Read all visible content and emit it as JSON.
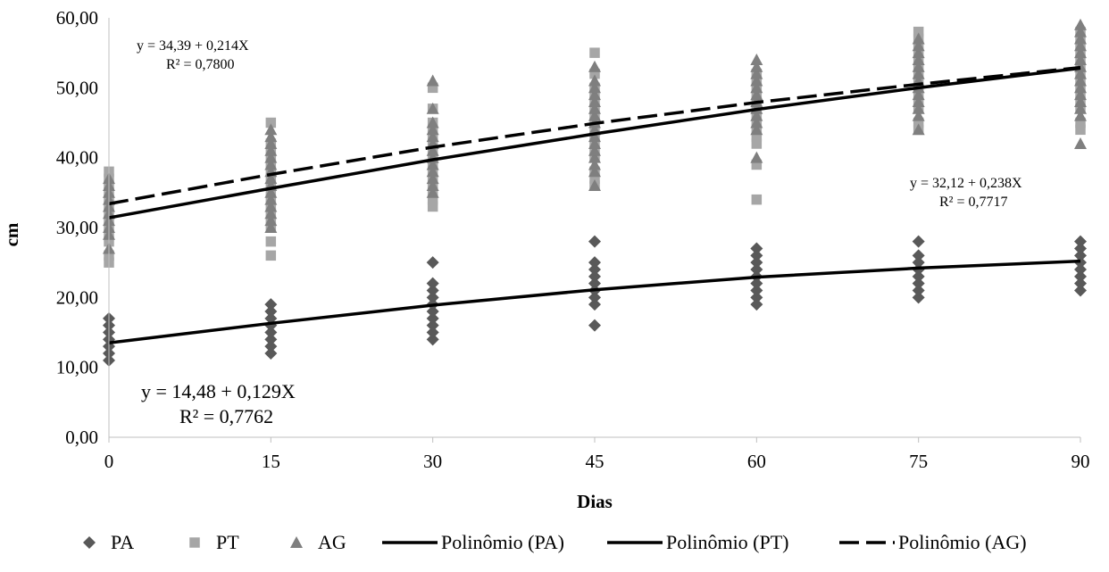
{
  "chart_data": {
    "type": "scatter",
    "title": "",
    "xlabel": "Dias",
    "ylabel": "cm",
    "xlim": [
      0,
      90
    ],
    "ylim": [
      0,
      60
    ],
    "x_ticks": [
      0,
      15,
      30,
      45,
      60,
      75,
      90
    ],
    "x_tick_labels": [
      "0",
      "15",
      "30",
      "45",
      "60",
      "75",
      "90"
    ],
    "y_ticks": [
      0,
      10,
      20,
      30,
      40,
      50,
      60
    ],
    "y_tick_labels": [
      "0,00",
      "10,00",
      "20,00",
      "30,00",
      "40,00",
      "50,00",
      "60,00"
    ],
    "grid": false,
    "legend_position": "bottom",
    "series": [
      {
        "name": "PA",
        "marker": "diamond",
        "color": "#595959",
        "points": [
          {
            "x": 0,
            "y": [
              11,
              12,
              13,
              14,
              15,
              16,
              17
            ]
          },
          {
            "x": 15,
            "y": [
              12,
              13,
              14,
              15,
              16,
              17,
              18,
              19
            ]
          },
          {
            "x": 30,
            "y": [
              14,
              15,
              16,
              17,
              18,
              19,
              20,
              21,
              22,
              25
            ]
          },
          {
            "x": 45,
            "y": [
              16,
              19,
              20,
              21,
              22,
              23,
              24,
              25,
              28
            ]
          },
          {
            "x": 60,
            "y": [
              19,
              20,
              21,
              22,
              23,
              24,
              25,
              26,
              27
            ]
          },
          {
            "x": 75,
            "y": [
              20,
              21,
              22,
              23,
              24,
              25,
              26,
              28
            ]
          },
          {
            "x": 90,
            "y": [
              21,
              22,
              23,
              24,
              25,
              26,
              27,
              28
            ]
          }
        ]
      },
      {
        "name": "PT",
        "marker": "square",
        "color": "#a6a6a6",
        "points": [
          {
            "x": 0,
            "y": [
              25,
              26,
              28,
              29,
              30,
              31,
              32,
              33,
              34,
              35,
              36,
              37,
              38
            ]
          },
          {
            "x": 15,
            "y": [
              26,
              28,
              30,
              31,
              32,
              33,
              34,
              35,
              36,
              37,
              38,
              39,
              40,
              41,
              42,
              45
            ]
          },
          {
            "x": 30,
            "y": [
              33,
              34,
              35,
              36,
              37,
              38,
              39,
              40,
              41,
              42,
              43,
              44,
              45,
              47,
              50
            ]
          },
          {
            "x": 45,
            "y": [
              36,
              37,
              38,
              40,
              41,
              42,
              43,
              44,
              45,
              46,
              47,
              48,
              49,
              50,
              52,
              55
            ]
          },
          {
            "x": 60,
            "y": [
              34,
              39,
              42,
              43,
              44,
              45,
              46,
              47,
              48,
              49,
              50,
              51,
              52
            ]
          },
          {
            "x": 75,
            "y": [
              44,
              45,
              47,
              48,
              49,
              50,
              51,
              52,
              53,
              54,
              55,
              56,
              57,
              58
            ]
          },
          {
            "x": 90,
            "y": [
              44,
              45,
              47,
              48,
              49,
              50,
              51,
              52,
              53,
              54,
              55,
              56,
              57,
              58
            ]
          }
        ]
      },
      {
        "name": "AG",
        "marker": "triangle",
        "color": "#7f7f7f",
        "points": [
          {
            "x": 0,
            "y": [
              27,
              29,
              30,
              31,
              32,
              33,
              34,
              35,
              36,
              37
            ]
          },
          {
            "x": 15,
            "y": [
              30,
              31,
              32,
              33,
              34,
              35,
              36,
              37,
              38,
              39,
              40,
              41,
              42,
              43,
              44
            ]
          },
          {
            "x": 30,
            "y": [
              35,
              36,
              37,
              38,
              39,
              40,
              41,
              42,
              43,
              44,
              45,
              47,
              51
            ]
          },
          {
            "x": 45,
            "y": [
              36,
              38,
              39,
              40,
              41,
              42,
              43,
              44,
              45,
              46,
              47,
              48,
              49,
              50,
              51,
              53
            ]
          },
          {
            "x": 60,
            "y": [
              40,
              44,
              45,
              46,
              47,
              48,
              49,
              50,
              51,
              52,
              53,
              54
            ]
          },
          {
            "x": 75,
            "y": [
              44,
              46,
              47,
              48,
              49,
              50,
              51,
              52,
              53,
              54,
              55,
              56,
              57
            ]
          },
          {
            "x": 90,
            "y": [
              42,
              46,
              47,
              48,
              49,
              50,
              51,
              52,
              53,
              54,
              55,
              56,
              57,
              58,
              59
            ]
          }
        ]
      }
    ],
    "trendlines": [
      {
        "name": "Polinômio (PA)",
        "style": "solid",
        "color": "#000000",
        "x": [
          0,
          15,
          30,
          45,
          60,
          75,
          90
        ],
        "y": [
          13.5,
          16.3,
          18.9,
          21.1,
          22.9,
          24.2,
          25.2
        ]
      },
      {
        "name": "Polinômio (PT)",
        "style": "solid",
        "color": "#000000",
        "x": [
          0,
          15,
          30,
          45,
          60,
          75,
          90
        ],
        "y": [
          31.4,
          35.6,
          39.7,
          43.4,
          46.9,
          50.0,
          52.8
        ]
      },
      {
        "name": "Polinômio (AG)",
        "style": "dashed",
        "color": "#000000",
        "x": [
          0,
          15,
          30,
          45,
          60,
          75,
          90
        ],
        "y": [
          33.4,
          37.6,
          41.5,
          44.9,
          47.9,
          50.5,
          52.9
        ]
      }
    ],
    "annotations": {
      "ag_equation": "y = 34,39 + 0,214X",
      "ag_r2": "R² = 0,7800",
      "pt_equation": "y = 32,12 + 0,238X",
      "pt_r2": "R² = 0,7717",
      "pa_equation": "y = 14,48 + 0,129X",
      "pa_r2": "R² = 0,7762"
    }
  }
}
